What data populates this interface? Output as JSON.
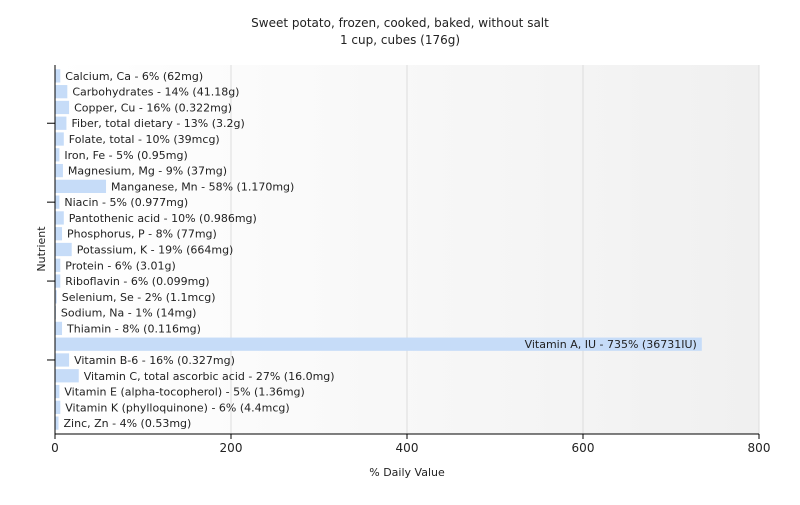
{
  "chart_data": {
    "type": "bar",
    "orientation": "horizontal",
    "title": "Sweet potato, frozen, cooked, baked, without salt",
    "subtitle": "1 cup, cubes (176g)",
    "xlabel": "% Daily Value",
    "ylabel": "Nutrient",
    "xlim": [
      0,
      800
    ],
    "xticks": [
      "0",
      "200",
      "400",
      "600",
      "800"
    ],
    "grid": true,
    "colors": {
      "bar": "#c6dcf8",
      "grid": "#dddddd",
      "axis": "#000000",
      "text": "#222222"
    },
    "categories": [
      "Calcium, Ca",
      "Carbohydrates",
      "Copper, Cu",
      "Fiber, total dietary",
      "Folate, total",
      "Iron, Fe",
      "Magnesium, Mg",
      "Manganese, Mn",
      "Niacin",
      "Pantothenic acid",
      "Phosphorus, P",
      "Potassium, K",
      "Protein",
      "Riboflavin",
      "Selenium, Se",
      "Sodium, Na",
      "Thiamin",
      "Vitamin A, IU",
      "Vitamin B-6",
      "Vitamin C, total ascorbic acid",
      "Vitamin E (alpha-tocopherol)",
      "Vitamin K (phylloquinone)",
      "Zinc, Zn"
    ],
    "values": [
      6,
      14,
      16,
      13,
      10,
      5,
      9,
      58,
      5,
      10,
      8,
      19,
      6,
      6,
      2,
      1,
      8,
      735,
      16,
      27,
      5,
      6,
      4
    ],
    "labels": [
      "Calcium, Ca - 6% (62mg)",
      "Carbohydrates - 14% (41.18g)",
      "Copper, Cu - 16% (0.322mg)",
      "Fiber, total dietary - 13% (3.2g)",
      "Folate, total - 10% (39mcg)",
      "Iron, Fe - 5% (0.95mg)",
      "Magnesium, Mg - 9% (37mg)",
      "Manganese, Mn - 58% (1.170mg)",
      "Niacin - 5% (0.977mg)",
      "Pantothenic acid - 10% (0.986mg)",
      "Phosphorus, P - 8% (77mg)",
      "Potassium, K - 19% (664mg)",
      "Protein - 6% (3.01g)",
      "Riboflavin - 6% (0.099mg)",
      "Selenium, Se - 2% (1.1mcg)",
      "Sodium, Na - 1% (14mg)",
      "Thiamin - 8% (0.116mg)",
      "Vitamin A, IU - 735% (36731IU)",
      "Vitamin B-6 - 16% (0.327mg)",
      "Vitamin C, total ascorbic acid - 27% (16.0mg)",
      "Vitamin E (alpha-tocopherol) - 5% (1.36mg)",
      "Vitamin K (phylloquinone) - 6% (4.4mcg)",
      "Zinc, Zn - 4% (0.53mg)"
    ]
  }
}
